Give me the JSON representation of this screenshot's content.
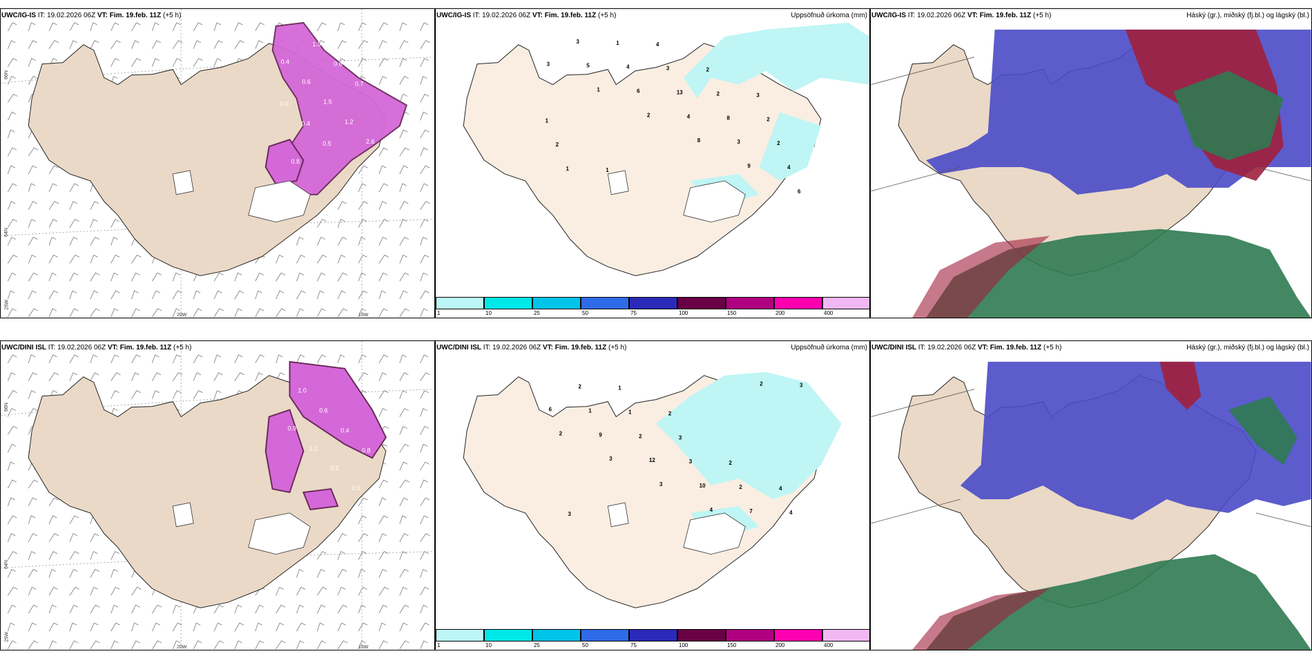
{
  "rows": [
    {
      "model": "UWC/IG-IS",
      "it_label": "IT:",
      "it_value": "19.02.2026 06Z",
      "vt_label": "VT:",
      "vt_value": "Fim. 19.feb. 11Z",
      "lead": "(+5 h)"
    },
    {
      "model": "UWC/DINI ISL",
      "it_label": "IT:",
      "it_value": "19.02.2026 06Z",
      "vt_label": "VT:",
      "vt_value": "Fim. 19.feb. 11Z",
      "lead": "(+5 h)"
    }
  ],
  "precip_title": "Uppsöfnuð úrkoma (mm)",
  "cloud_title": "Háský (gr.), miðský (fj.bl.) og lágský (bl.)",
  "legend": {
    "colors": [
      "#bdf6f6",
      "#00e8e8",
      "#00c4e8",
      "#2f6be8",
      "#2a2ab8",
      "#6a0045",
      "#b00080",
      "#ff00b0",
      "#f2b8f4"
    ],
    "ticks": [
      "1",
      "10",
      "25",
      "50",
      "75",
      "100",
      "150",
      "200",
      "400"
    ]
  },
  "axes": {
    "lat_top": "66N",
    "lat_mid": "64N",
    "lat_low": "25W",
    "lon_a": "20W",
    "lon_b": "15W",
    "lon_edge": "65N",
    "lon_edge2": "64N"
  },
  "precip_labels_top": [
    "3",
    "1",
    "2",
    "8",
    "9",
    "6",
    "5",
    "6",
    "4",
    "3",
    "4",
    "3",
    "4",
    "13",
    "8",
    "2",
    "1",
    "1",
    "3",
    "2",
    "2",
    "2",
    "1",
    "4",
    "2",
    "3",
    "1"
  ],
  "precip_labels_bottom": [
    "2",
    "3",
    "3",
    "4",
    "2",
    "6",
    "9",
    "12",
    "10",
    "7",
    "3",
    "1",
    "2",
    "3",
    "2",
    "4",
    "2",
    "1",
    "3",
    "2",
    "4",
    "3",
    "1",
    "2"
  ],
  "snow_labels_top": [
    "0.4",
    "0.6",
    "1.5",
    "1.2",
    "2.6",
    "0.8",
    "1.5",
    "0.6",
    "0.7",
    "0.6",
    "0.4",
    "0.5"
  ],
  "snow_labels_bottom": [
    "0.9",
    "1.2",
    "0.5",
    "0.9",
    "0.7",
    "1.0",
    "0.6",
    "0.4",
    "0.8"
  ],
  "colors": {
    "land": "#ead9c7",
    "land_light": "#faeee2",
    "cyan": "#bff5f5",
    "snow": "#d468d8",
    "snow_dark": "#6a2a5a",
    "high": "#4a4ac8",
    "mid": "#a0203c",
    "low": "#2f7a52"
  }
}
